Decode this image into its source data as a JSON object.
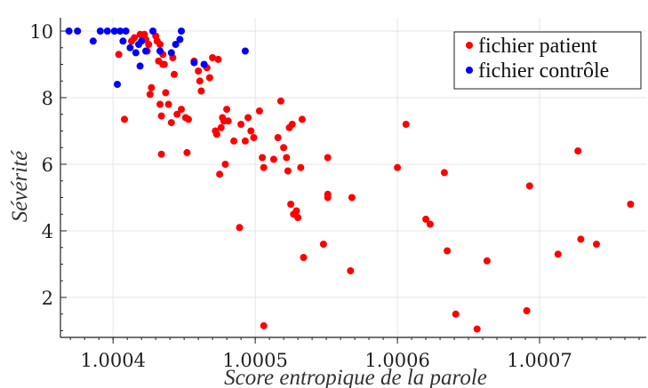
{
  "chart_data": {
    "type": "scatter",
    "xlabel": "Score entropique de la parole",
    "ylabel": "Sévérité",
    "xlim": [
      1.000363,
      1.000775
    ],
    "ylim": [
      0.8,
      10.4
    ],
    "x_ticks": [
      1.0004,
      1.0005,
      1.0006,
      1.0007
    ],
    "x_tick_labels": [
      "1.0004",
      "1.0005",
      "1.0006",
      "1.0007"
    ],
    "y_ticks": [
      2,
      4,
      6,
      8,
      10
    ],
    "y_tick_labels": [
      "2",
      "4",
      "6",
      "8",
      "10"
    ],
    "grid": true,
    "legend_position": "top-right",
    "series": [
      {
        "name": "fichier patient",
        "color": "#ff0000",
        "points": [
          [
            1.000404,
            9.3
          ],
          [
            1.000408,
            7.35
          ],
          [
            1.000413,
            9.7
          ],
          [
            1.000415,
            9.8
          ],
          [
            1.000419,
            9.9
          ],
          [
            1.000422,
            9.9
          ],
          [
            1.000423,
            9.75
          ],
          [
            1.000424,
            9.4
          ],
          [
            1.000425,
            9.6
          ],
          [
            1.000426,
            8.1
          ],
          [
            1.000427,
            8.3
          ],
          [
            1.00043,
            9.85
          ],
          [
            1.000431,
            9.7
          ],
          [
            1.000432,
            9.1
          ],
          [
            1.000433,
            9.6
          ],
          [
            1.000433,
            7.8
          ],
          [
            1.000434,
            7.45
          ],
          [
            1.000434,
            6.3
          ],
          [
            1.000435,
            9.3
          ],
          [
            1.000435,
            9.0
          ],
          [
            1.000436,
            9.0
          ],
          [
            1.000437,
            8.15
          ],
          [
            1.000439,
            7.8
          ],
          [
            1.000441,
            7.25
          ],
          [
            1.000442,
            9.2
          ],
          [
            1.000443,
            8.7
          ],
          [
            1.000445,
            7.5
          ],
          [
            1.000448,
            7.65
          ],
          [
            1.000451,
            7.4
          ],
          [
            1.000452,
            6.35
          ],
          [
            1.000453,
            7.35
          ],
          [
            1.000457,
            9.1
          ],
          [
            1.00046,
            8.8
          ],
          [
            1.000461,
            8.5
          ],
          [
            1.000462,
            8.2
          ],
          [
            1.000466,
            8.9
          ],
          [
            1.000468,
            8.6
          ],
          [
            1.00047,
            9.2
          ],
          [
            1.000472,
            7.0
          ],
          [
            1.000473,
            6.9
          ],
          [
            1.000474,
            9.15
          ],
          [
            1.000475,
            5.7
          ],
          [
            1.000476,
            7.1
          ],
          [
            1.000477,
            7.4
          ],
          [
            1.000478,
            7.3
          ],
          [
            1.000479,
            6.0
          ],
          [
            1.00048,
            7.65
          ],
          [
            1.000481,
            7.3
          ],
          [
            1.000485,
            6.7
          ],
          [
            1.000489,
            4.1
          ],
          [
            1.00049,
            7.2
          ],
          [
            1.000493,
            6.7
          ],
          [
            1.000495,
            7.4
          ],
          [
            1.000497,
            7.0
          ],
          [
            1.000499,
            6.8
          ],
          [
            1.000503,
            7.6
          ],
          [
            1.000505,
            6.2
          ],
          [
            1.000506,
            5.9
          ],
          [
            1.000506,
            1.15
          ],
          [
            1.000513,
            6.15
          ],
          [
            1.000516,
            6.8
          ],
          [
            1.000518,
            7.9
          ],
          [
            1.00052,
            6.5
          ],
          [
            1.000522,
            6.2
          ],
          [
            1.000523,
            5.8
          ],
          [
            1.000524,
            7.1
          ],
          [
            1.000525,
            4.8
          ],
          [
            1.000526,
            7.2
          ],
          [
            1.000527,
            4.5
          ],
          [
            1.000529,
            4.6
          ],
          [
            1.00053,
            4.4
          ],
          [
            1.000532,
            5.9
          ],
          [
            1.000533,
            7.35
          ],
          [
            1.000534,
            3.2
          ],
          [
            1.000548,
            3.6
          ],
          [
            1.000551,
            6.2
          ],
          [
            1.000551,
            5.1
          ],
          [
            1.000551,
            5.0
          ],
          [
            1.000567,
            2.8
          ],
          [
            1.000568,
            5.0
          ],
          [
            1.0006,
            5.9
          ],
          [
            1.000606,
            7.2
          ],
          [
            1.00062,
            4.35
          ],
          [
            1.000623,
            4.2
          ],
          [
            1.000633,
            5.75
          ],
          [
            1.000635,
            3.4
          ],
          [
            1.000641,
            1.5
          ],
          [
            1.000656,
            1.05
          ],
          [
            1.000663,
            3.1
          ],
          [
            1.000691,
            1.6
          ],
          [
            1.000693,
            5.35
          ],
          [
            1.000713,
            3.3
          ],
          [
            1.000727,
            6.4
          ],
          [
            1.000729,
            3.75
          ],
          [
            1.00074,
            3.6
          ],
          [
            1.000764,
            4.8
          ]
        ]
      },
      {
        "name": "fichier contrôle",
        "color": "#0000ff",
        "points": [
          [
            1.000369,
            10.0
          ],
          [
            1.000375,
            10.0
          ],
          [
            1.000386,
            9.7
          ],
          [
            1.000391,
            10.0
          ],
          [
            1.000396,
            10.0
          ],
          [
            1.000401,
            10.0
          ],
          [
            1.000403,
            8.4
          ],
          [
            1.000405,
            10.0
          ],
          [
            1.000407,
            9.7
          ],
          [
            1.000409,
            10.0
          ],
          [
            1.000412,
            9.5
          ],
          [
            1.000416,
            9.35
          ],
          [
            1.000418,
            9.6
          ],
          [
            1.000419,
            8.95
          ],
          [
            1.00042,
            9.7
          ],
          [
            1.000423,
            9.4
          ],
          [
            1.000428,
            10.0
          ],
          [
            1.000433,
            9.4
          ],
          [
            1.000441,
            9.35
          ],
          [
            1.000444,
            9.6
          ],
          [
            1.000447,
            9.75
          ],
          [
            1.000448,
            10.0
          ],
          [
            1.000457,
            9.05
          ],
          [
            1.000464,
            9.0
          ],
          [
            1.000493,
            9.4
          ]
        ]
      }
    ]
  }
}
